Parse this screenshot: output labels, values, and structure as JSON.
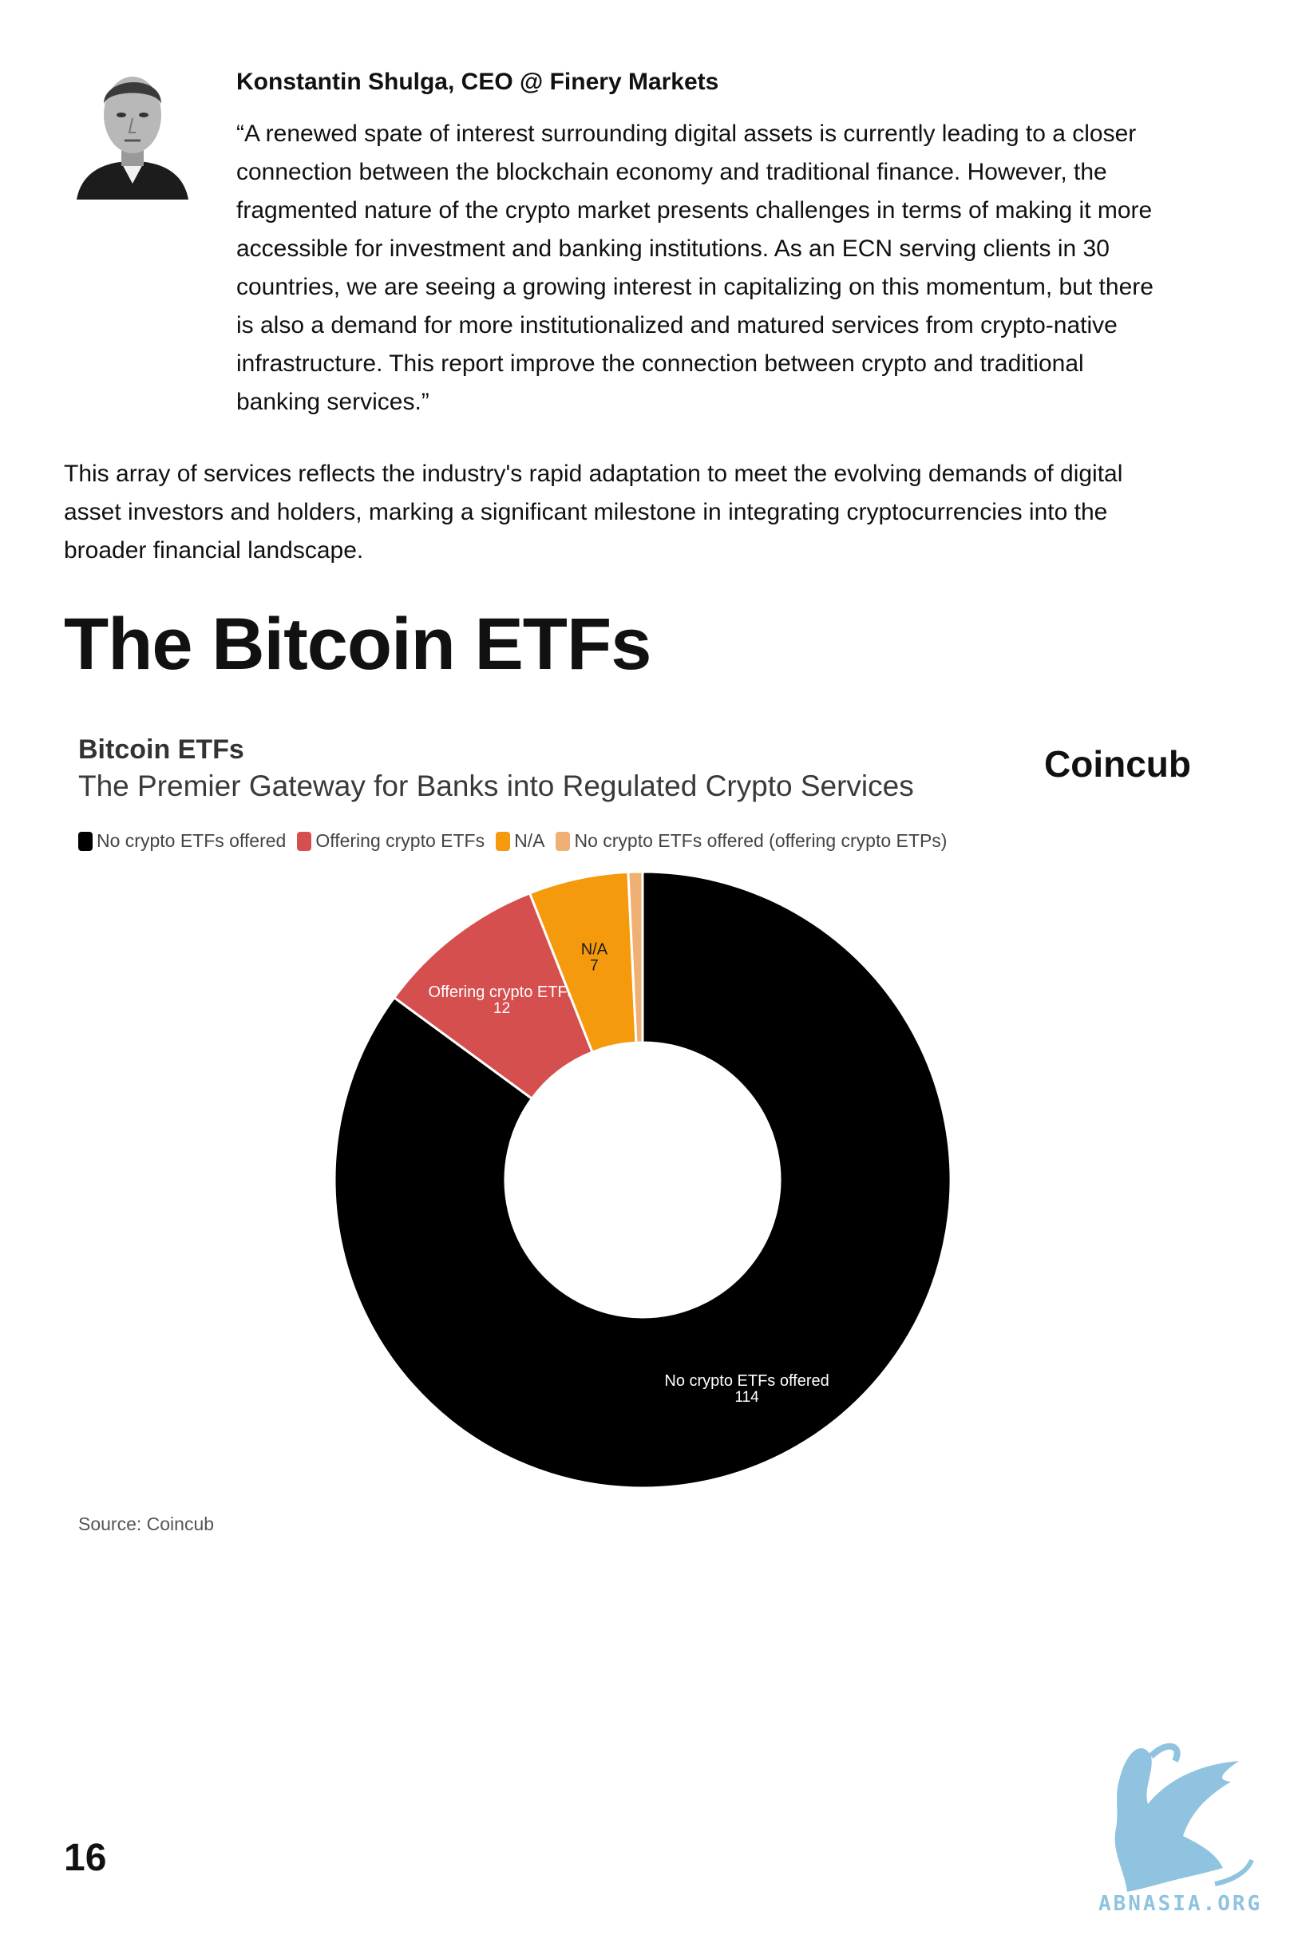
{
  "quote": {
    "author": "Konstantin Shulga, CEO @ Finery Markets",
    "lines": [
      "“A renewed spate of interest surrounding digital assets is currently leading to a closer",
      "connection between the blockchain economy and traditional finance. However, the",
      "fragmented nature of the crypto market presents challenges in terms of making it more",
      "accessible for investment and banking institutions. As an ECN serving clients in 30",
      "countries, we are seeing a growing interest in capitalizing on this momentum, but there",
      "is also a demand for more institutionalized and matured services from crypto-native",
      "infrastructure. This report improve the connection between crypto and traditional",
      "banking services.”"
    ]
  },
  "paragraph": {
    "lines": [
      "This array of services reflects the industry's rapid adaptation to meet the evolving demands of digital",
      "asset investors and holders, marking a significant milestone in integrating cryptocurrencies into the",
      "broader financial landscape."
    ]
  },
  "section_heading": "The Bitcoin ETFs",
  "chart_data": {
    "type": "pie",
    "style": "donut",
    "title": "Bitcoin ETFs",
    "subtitle": "The Premier Gateway for Banks into Regulated Crypto Services",
    "brand": "Coincub",
    "legend_position": "top-left",
    "slices": [
      {
        "name": "No crypto ETFs offered",
        "value": 114,
        "color": "#000000",
        "label_color": "#ffffff",
        "show_label": true
      },
      {
        "name": "Offering crypto ETFs",
        "value": 12,
        "color": "#d64f4f",
        "label_color": "#ffffff",
        "show_label": true
      },
      {
        "name": "N/A",
        "value": 7,
        "color": "#f59a0c",
        "label_color": "#1a1a1a",
        "show_label": true
      },
      {
        "name": "No crypto ETFs offered (offering crypto ETPs)",
        "value": 1,
        "color": "#f0b074",
        "label_color": "#1a1a1a",
        "show_label": false
      }
    ],
    "source": "Source: Coincub"
  },
  "page_number": "16",
  "watermark_text": "ABNASIA.ORG",
  "icons": {
    "avatar": "author-portrait",
    "logo": "griffin-logo-icon"
  }
}
